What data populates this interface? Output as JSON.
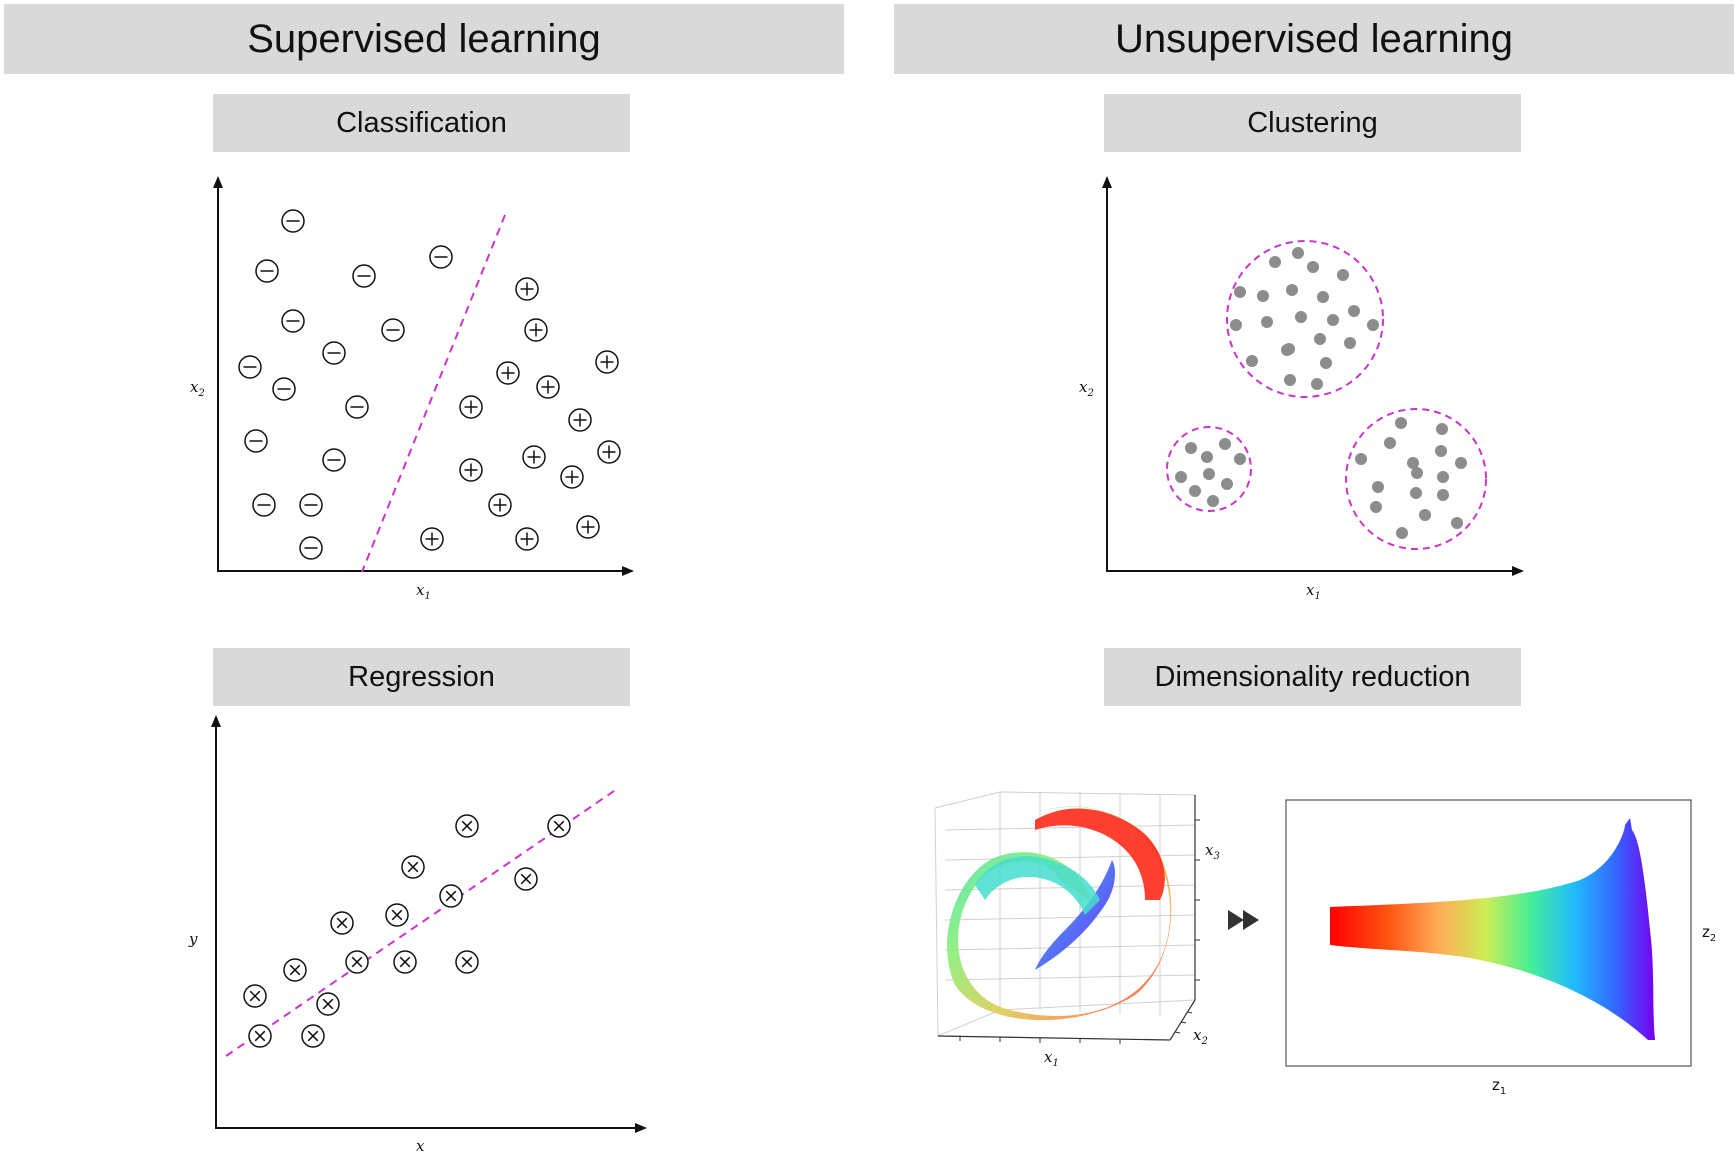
{
  "headers": {
    "supervised": "Supervised learning",
    "unsupervised": "Unsupervised learning"
  },
  "panels": {
    "classification": {
      "title": "Classification",
      "x_label": "x",
      "x_sub": "1",
      "y_label": "x",
      "y_sub": "2",
      "negative_points": [
        [
          293,
          221
        ],
        [
          267,
          271
        ],
        [
          364,
          276
        ],
        [
          441,
          257
        ],
        [
          293,
          321
        ],
        [
          393,
          330
        ],
        [
          334,
          353
        ],
        [
          250,
          367
        ],
        [
          284,
          389
        ],
        [
          357,
          407
        ],
        [
          256,
          441
        ],
        [
          334,
          460
        ],
        [
          264,
          505
        ],
        [
          311,
          505
        ],
        [
          311,
          548
        ]
      ],
      "positive_points": [
        [
          527,
          289
        ],
        [
          536,
          330
        ],
        [
          607,
          362
        ],
        [
          508,
          373
        ],
        [
          548,
          387
        ],
        [
          471,
          407
        ],
        [
          580,
          420
        ],
        [
          609,
          452
        ],
        [
          471,
          470
        ],
        [
          534,
          457
        ],
        [
          572,
          477
        ],
        [
          500,
          505
        ],
        [
          432,
          539
        ],
        [
          527,
          539
        ],
        [
          588,
          527
        ]
      ],
      "boundary": [
        [
          505,
          215
        ],
        [
          362,
          572
        ]
      ]
    },
    "regression": {
      "title": "Regression",
      "x_label": "x",
      "y_label": "y",
      "points": [
        [
          467,
          826
        ],
        [
          559,
          826
        ],
        [
          413,
          867
        ],
        [
          526,
          879
        ],
        [
          451,
          896
        ],
        [
          342,
          923
        ],
        [
          397,
          915
        ],
        [
          295,
          970
        ],
        [
          357,
          962
        ],
        [
          405,
          962
        ],
        [
          467,
          962
        ],
        [
          255,
          996
        ],
        [
          328,
          1004
        ],
        [
          260,
          1036
        ],
        [
          313,
          1036
        ]
      ],
      "fit_line": [
        [
          226,
          1056
        ],
        [
          617,
          789
        ]
      ]
    },
    "clustering": {
      "title": "Clustering",
      "x_label": "x",
      "x_sub": "1",
      "y_label": "x",
      "y_sub": "2",
      "clusters": [
        {
          "center": [
            1305,
            319
          ],
          "radius": 78,
          "points": [
            [
              1275,
              262
            ],
            [
              1298,
              253
            ],
            [
              1313,
              267
            ],
            [
              1343,
              275
            ],
            [
              1240,
              292
            ],
            [
              1263,
              296
            ],
            [
              1292,
              290
            ],
            [
              1323,
              297
            ],
            [
              1354,
              311
            ],
            [
              1236,
              325
            ],
            [
              1267,
              322
            ],
            [
              1301,
              317
            ],
            [
              1333,
              320
            ],
            [
              1320,
              339
            ],
            [
              1373,
              325
            ],
            [
              1287,
              350
            ],
            [
              1252,
              361
            ],
            [
              1289,
              349
            ],
            [
              1326,
              363
            ],
            [
              1350,
              343
            ],
            [
              1290,
              380
            ],
            [
              1317,
              384
            ]
          ]
        },
        {
          "center": [
            1209,
            469
          ],
          "radius": 42,
          "points": [
            [
              1191,
              448
            ],
            [
              1225,
              444
            ],
            [
              1207,
              457
            ],
            [
              1240,
              459
            ],
            [
              1181,
              477
            ],
            [
              1209,
              474
            ],
            [
              1227,
              484
            ],
            [
              1195,
              491
            ],
            [
              1213,
              501
            ]
          ]
        },
        {
          "center": [
            1416,
            479
          ],
          "radius": 70,
          "points": [
            [
              1401,
              423
            ],
            [
              1442,
              429
            ],
            [
              1390,
              443
            ],
            [
              1361,
              459
            ],
            [
              1413,
              463
            ],
            [
              1441,
              451
            ],
            [
              1461,
              463
            ],
            [
              1417,
              473
            ],
            [
              1443,
              477
            ],
            [
              1378,
              487
            ],
            [
              1416,
              493
            ],
            [
              1443,
              495
            ],
            [
              1376,
              507
            ],
            [
              1425,
              515
            ],
            [
              1402,
              533
            ],
            [
              1457,
              523
            ]
          ]
        }
      ]
    },
    "dimensionality_reduction": {
      "title": "Dimensionality reduction",
      "input_axes": {
        "x1": "x",
        "x1_sub": "1",
        "x2": "x",
        "x2_sub": "2",
        "x3": "x",
        "x3_sub": "3"
      },
      "output_axes": {
        "z1": "z",
        "z1_sub": "1",
        "z2": "z",
        "z2_sub": "2"
      },
      "arrow": "fast-forward-icon",
      "gradient": [
        "#ff0000",
        "#ff8800",
        "#dddd33",
        "#33ee66",
        "#22aaff",
        "#4444ff",
        "#7700ee"
      ]
    }
  }
}
